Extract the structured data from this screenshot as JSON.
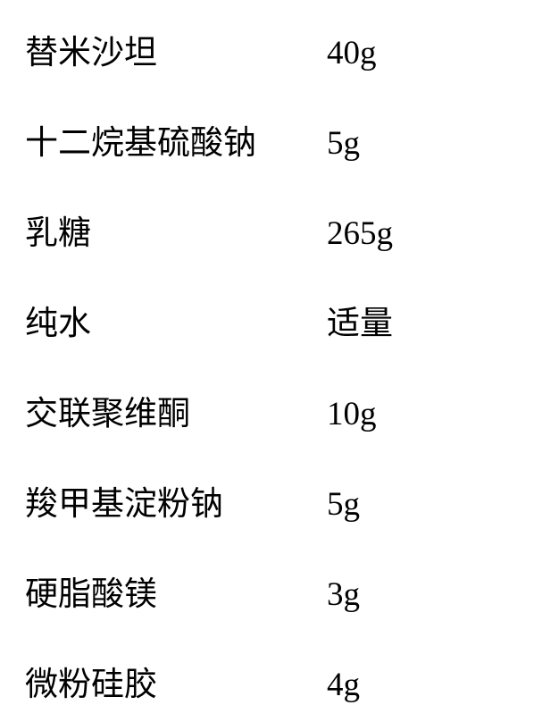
{
  "table": {
    "background_color": "#ffffff",
    "text_color": "#000000",
    "font_size": 37,
    "rows": [
      {
        "name": "替米沙坦",
        "amount": "40g"
      },
      {
        "name": "十二烷基硫酸钠",
        "amount": "5g"
      },
      {
        "name": "乳糖",
        "amount": "265g"
      },
      {
        "name": "纯水",
        "amount": "适量"
      },
      {
        "name": "交联聚维酮",
        "amount": "10g"
      },
      {
        "name": "羧甲基淀粉钠",
        "amount": "5g"
      },
      {
        "name": "硬脂酸镁",
        "amount": "3g"
      },
      {
        "name": "微粉硅胶",
        "amount": "4g"
      }
    ]
  }
}
